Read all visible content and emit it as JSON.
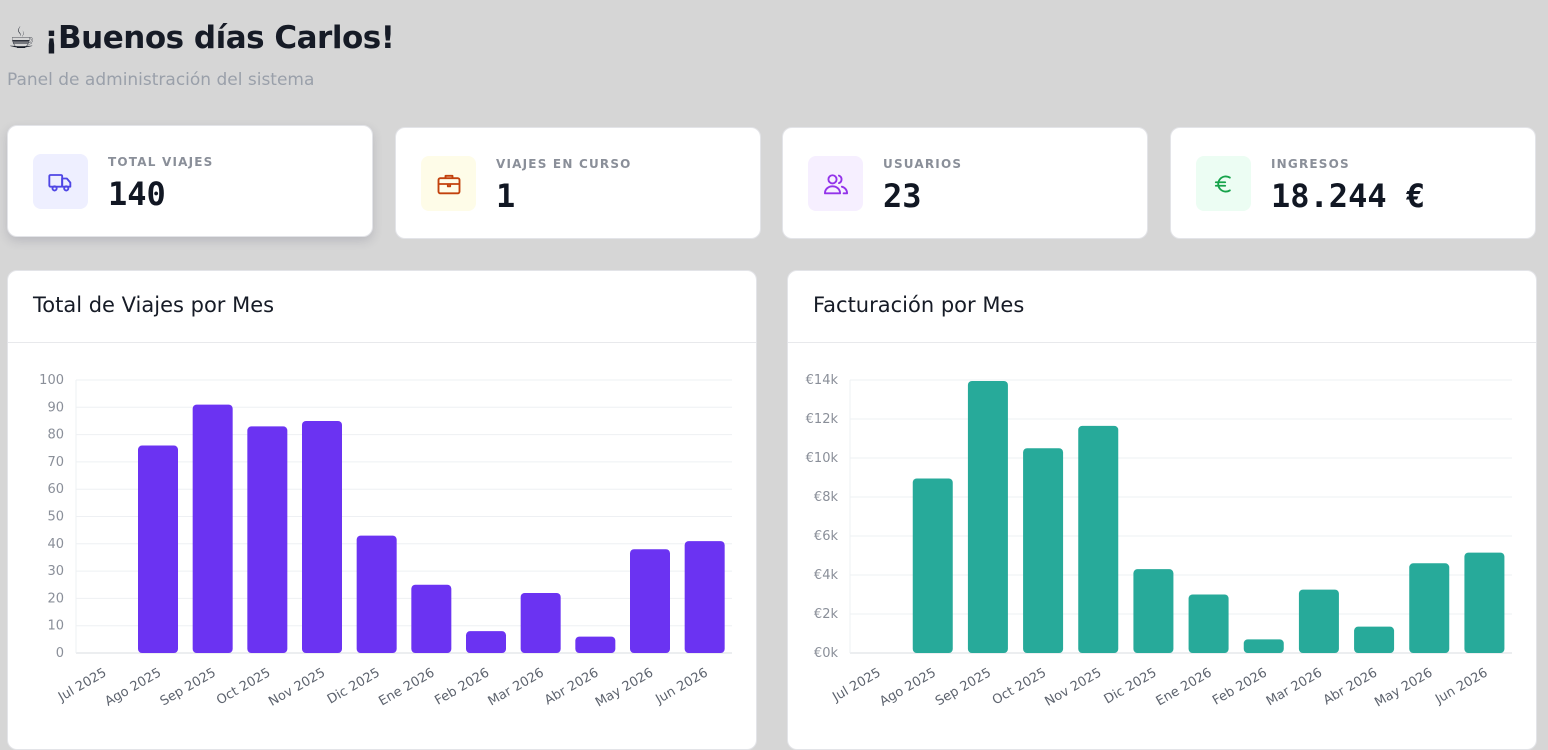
{
  "header": {
    "emoji": "☕",
    "greeting": "¡Buenos días Carlos!",
    "subtitle": "Panel de administración del sistema"
  },
  "stats": [
    {
      "label": "TOTAL VIAJES",
      "value": "140",
      "icon": "truck-icon",
      "icon_bg": "#eeefff",
      "icon_color": "#4f46e5"
    },
    {
      "label": "VIAJES EN CURSO",
      "value": "1",
      "icon": "briefcase-icon",
      "icon_bg": "#fefce8",
      "icon_color": "#c2410c"
    },
    {
      "label": "USUARIOS",
      "value": "23",
      "icon": "users-icon",
      "icon_bg": "#f6efff",
      "icon_color": "#9333ea"
    },
    {
      "label": "INGRESOS",
      "value": "18.244 €",
      "icon": "euro-icon",
      "icon_bg": "#ecfdf3",
      "icon_color": "#16a34a"
    }
  ],
  "charts": {
    "trips_title": "Total de Viajes por Mes",
    "revenue_title": "Facturación por Mes"
  },
  "chart_data": [
    {
      "type": "bar",
      "title": "Total de Viajes por Mes",
      "categories": [
        "Jul 2025",
        "Ago 2025",
        "Sep 2025",
        "Oct 2025",
        "Nov 2025",
        "Dic 2025",
        "Ene 2026",
        "Feb 2026",
        "Mar 2026",
        "Abr 2026",
        "May 2026",
        "Jun 2026"
      ],
      "values": [
        0,
        76,
        91,
        83,
        85,
        43,
        25,
        8,
        22,
        6,
        38,
        41
      ],
      "ylim": [
        0,
        100
      ],
      "yticks": [
        0,
        10,
        20,
        30,
        40,
        50,
        60,
        70,
        80,
        90,
        100
      ],
      "ytick_labels": [
        "0",
        "10",
        "20",
        "30",
        "40",
        "50",
        "60",
        "70",
        "80",
        "90",
        "100"
      ],
      "grid": true,
      "color": "#6b33f2"
    },
    {
      "type": "bar",
      "title": "Facturación por Mes",
      "categories": [
        "Jul 2025",
        "Ago 2025",
        "Sep 2025",
        "Oct 2025",
        "Nov 2025",
        "Dic 2025",
        "Ene 2026",
        "Feb 2026",
        "Mar 2026",
        "Abr 2026",
        "May 2026",
        "Jun 2026"
      ],
      "values": [
        0,
        8950,
        13950,
        10500,
        11650,
        4300,
        3000,
        700,
        3250,
        1350,
        4600,
        5150
      ],
      "ylim": [
        0,
        14000
      ],
      "yticks": [
        0,
        2000,
        4000,
        6000,
        8000,
        10000,
        12000,
        14000
      ],
      "ytick_labels": [
        "€0k",
        "€2k",
        "€4k",
        "€6k",
        "€8k",
        "€10k",
        "€12k",
        "€14k"
      ],
      "grid": true,
      "color": "#27aa9a"
    }
  ]
}
